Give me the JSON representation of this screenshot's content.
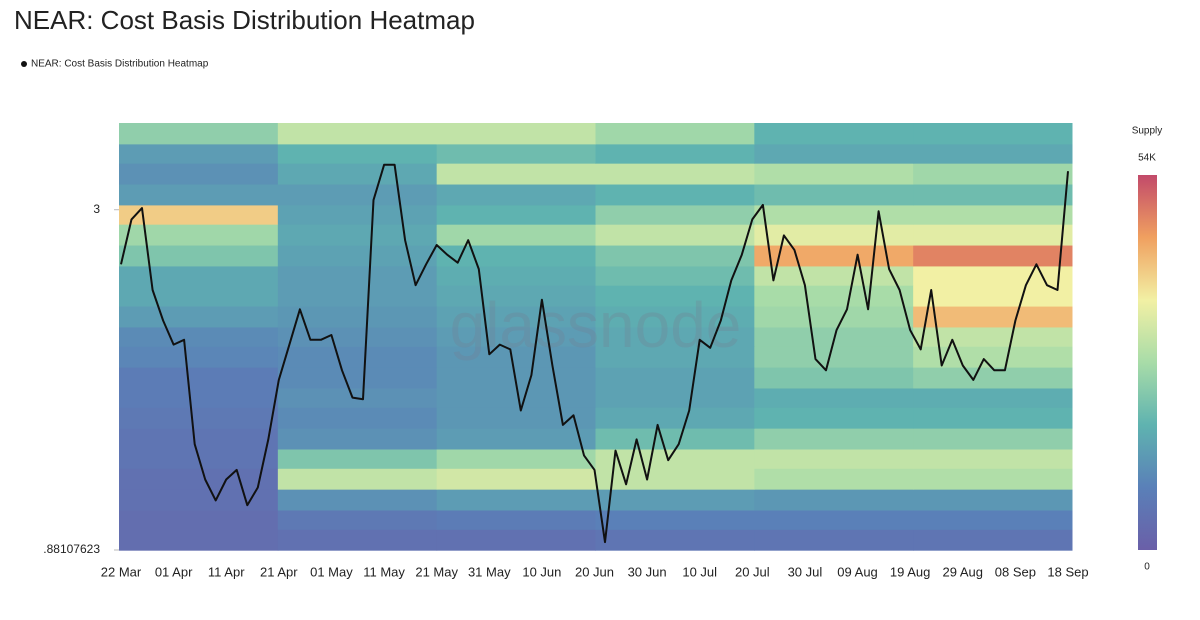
{
  "chart_data": {
    "type": "heatmap",
    "title": "NEAR: Cost Basis Distribution Heatmap",
    "watermark": "glassnode",
    "colorbar_title": "Supply",
    "zlim": [
      0,
      54000
    ],
    "zticks": [
      {
        "value": 0,
        "label": "0"
      },
      {
        "value": 54000,
        "label": "54K"
      }
    ],
    "colorscale": [
      "#6a5fa8",
      "#5a80b8",
      "#5fb3b0",
      "#a8dca8",
      "#f2f0a4",
      "#f0a060",
      "#c24a6a"
    ],
    "ylim": [
      0.88107623,
      3.54
    ],
    "yticks": [
      {
        "value": 0.88107623,
        "label": ".88107623"
      },
      3
    ],
    "categories": [
      "22 Mar",
      null,
      null,
      null,
      null,
      "01 Apr",
      null,
      null,
      null,
      null,
      "11 Apr",
      null,
      null,
      null,
      null,
      "21 Apr",
      null,
      null,
      null,
      null,
      "01 May",
      null,
      null,
      null,
      null,
      "11 May",
      null,
      null,
      null,
      null,
      "21 May",
      null,
      null,
      null,
      null,
      "31 May",
      null,
      null,
      null,
      null,
      "10 Jun",
      null,
      null,
      null,
      null,
      "20 Jun",
      null,
      null,
      null,
      null,
      "30 Jun",
      null,
      null,
      null,
      null,
      "10 Jul",
      null,
      null,
      null,
      null,
      "20 Jul",
      null,
      null,
      null,
      null,
      "30 Jul",
      null,
      null,
      null,
      null,
      "09 Aug",
      null,
      null,
      null,
      null,
      "19 Aug",
      null,
      null,
      null,
      null,
      "29 Aug",
      null,
      null,
      null,
      null,
      "08 Sep",
      null,
      null,
      null,
      null,
      "18 Sep"
    ],
    "series": [
      {
        "name": "NEAR: Cost Basis Distribution Heatmap",
        "color": "#111111",
        "values": [
          2.66,
          2.94,
          3.01,
          2.5,
          2.31,
          2.16,
          2.19,
          1.54,
          1.32,
          1.19,
          1.32,
          1.38,
          1.16,
          1.27,
          1.57,
          1.94,
          2.16,
          2.38,
          2.19,
          2.19,
          2.22,
          2.0,
          1.83,
          1.82,
          3.06,
          3.28,
          3.28,
          2.81,
          2.53,
          2.66,
          2.78,
          2.72,
          2.67,
          2.81,
          2.63,
          2.1,
          2.16,
          2.13,
          1.75,
          1.97,
          2.44,
          2.03,
          1.66,
          1.72,
          1.47,
          1.38,
          0.93,
          1.5,
          1.29,
          1.57,
          1.32,
          1.66,
          1.44,
          1.54,
          1.75,
          2.19,
          2.14,
          2.31,
          2.56,
          2.72,
          2.94,
          3.03,
          2.56,
          2.84,
          2.75,
          2.53,
          2.07,
          2.0,
          2.25,
          2.38,
          2.72,
          2.38,
          2.99,
          2.63,
          2.5,
          2.25,
          2.13,
          2.5,
          2.03,
          2.19,
          2.03,
          1.94,
          2.07,
          2.0,
          2.0,
          2.31,
          2.53,
          2.66,
          2.53,
          2.5,
          3.24
        ]
      }
    ],
    "price_bins": [
      0.88,
      1.01,
      1.13,
      1.26,
      1.39,
      1.51,
      1.64,
      1.77,
      1.89,
      2.02,
      2.15,
      2.27,
      2.4,
      2.53,
      2.65,
      2.78,
      2.91,
      3.03,
      3.16,
      3.29,
      3.41,
      3.54
    ],
    "supply": [
      [
        4000,
        5000,
        5000,
        6000,
        6000,
        6000
      ],
      [
        4000,
        7000,
        8000,
        9000,
        9000,
        9000
      ],
      [
        5000,
        12000,
        14000,
        14000,
        13000,
        13000
      ],
      [
        5000,
        30000,
        32000,
        30000,
        28000,
        28000
      ],
      [
        6000,
        22000,
        26000,
        30000,
        30000,
        30000
      ],
      [
        6000,
        12000,
        14000,
        20000,
        24000,
        24000
      ],
      [
        7000,
        11000,
        13000,
        16000,
        18000,
        18000
      ],
      [
        8000,
        12000,
        13000,
        15000,
        17000,
        17000
      ],
      [
        8000,
        11000,
        13000,
        15000,
        22000,
        24000
      ],
      [
        10000,
        11000,
        13000,
        16000,
        24000,
        28000
      ],
      [
        11000,
        12000,
        14000,
        16000,
        24000,
        30000
      ],
      [
        14000,
        13000,
        15000,
        17000,
        26000,
        42000
      ],
      [
        16000,
        14000,
        16000,
        18000,
        27000,
        36000
      ],
      [
        16000,
        14000,
        17000,
        20000,
        30000,
        36000
      ],
      [
        22000,
        15000,
        18000,
        22000,
        44000,
        48000
      ],
      [
        26000,
        16000,
        26000,
        30000,
        34000,
        34000
      ],
      [
        40000,
        15000,
        18000,
        24000,
        28000,
        28000
      ],
      [
        14000,
        14000,
        16000,
        18000,
        20000,
        20000
      ],
      [
        12000,
        16000,
        30000,
        30000,
        28000,
        26000
      ],
      [
        14000,
        18000,
        20000,
        18000,
        16000,
        16000
      ],
      [
        24000,
        30000,
        30000,
        26000,
        18000,
        18000
      ]
    ]
  }
}
